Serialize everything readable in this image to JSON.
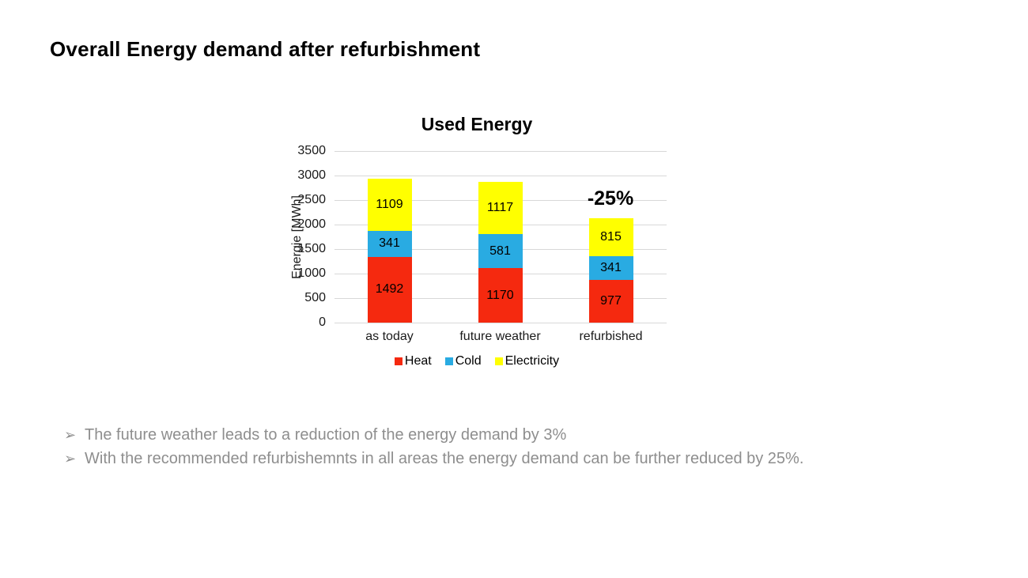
{
  "slide": {
    "title": "Overall Energy demand after refurbishment",
    "bullets": [
      {
        "marker": "➢",
        "text": "The future weather leads to a reduction of the energy demand by 3%"
      },
      {
        "marker": "➢",
        "text": "With the recommended refurbishemnts in all areas the energy demand can be further reduced by 25%."
      }
    ]
  },
  "chart_data": {
    "type": "bar",
    "stacked": true,
    "title": "Used Energy",
    "ylabel": "Energie [MWh]",
    "xlabel": "",
    "categories": [
      "as today",
      "future weather",
      "refurbished"
    ],
    "series": [
      {
        "name": "Heat",
        "color": "#f5290f",
        "values": [
          1492,
          1170,
          977
        ]
      },
      {
        "name": "Cold",
        "color": "#29abe2",
        "values": [
          341,
          581,
          341
        ]
      },
      {
        "name": "Electricity",
        "color": "#ffff00",
        "values": [
          1109,
          1117,
          815
        ]
      }
    ],
    "totals": [
      2942,
      2868,
      2133
    ],
    "ylim": [
      0,
      3500
    ],
    "ytick_step": 500,
    "grid": true,
    "gridline_color": "#d8d8d8",
    "legend_position": "bottom",
    "annotation": {
      "text": "-25%",
      "category_index": 2
    }
  }
}
